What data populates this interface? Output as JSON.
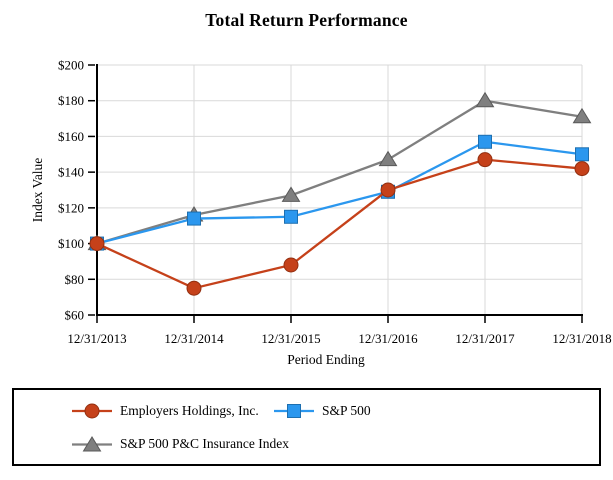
{
  "chart_data": {
    "type": "line",
    "title": "Total Return Performance",
    "xlabel": "Period Ending",
    "ylabel": "Index Value",
    "categories": [
      "12/31/2013",
      "12/31/2014",
      "12/31/2015",
      "12/31/2016",
      "12/31/2017",
      "12/31/2018"
    ],
    "series": [
      {
        "name": "Employers Holdings, Inc.",
        "marker": "circle",
        "color": "#C5411A",
        "edge": "#932F10",
        "values": [
          100,
          75,
          88,
          130,
          147,
          142
        ]
      },
      {
        "name": "S&P 500",
        "marker": "square",
        "color": "#2B97EE",
        "edge": "#1D6FB0",
        "values": [
          100,
          114,
          115,
          129,
          157,
          150
        ]
      },
      {
        "name": "S&P 500 P&C Insurance Index",
        "marker": "triangle",
        "color": "#7F7F7F",
        "edge": "#595959",
        "values": [
          100,
          116,
          127,
          147,
          180,
          171
        ]
      }
    ],
    "y_ticks": [
      60,
      80,
      100,
      120,
      140,
      160,
      180,
      200
    ],
    "y_tick_prefix": "$",
    "ylim": [
      60,
      200
    ],
    "grid": true,
    "gridline_color": "#D9D9D9",
    "axis_color": "#000000",
    "legend_position": "bottom"
  }
}
